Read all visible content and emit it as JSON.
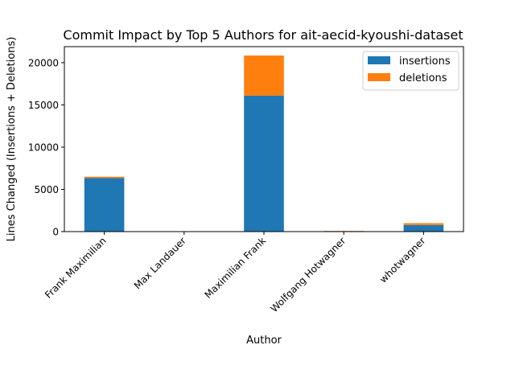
{
  "chart_data": {
    "type": "bar",
    "stacked": true,
    "title": "Commit Impact by Top 5 Authors for ait-aecid-kyoushi-dataset",
    "xlabel": "Author",
    "ylabel": "Lines Changed (Insertions + Deletions)",
    "categories": [
      "Frank Maximilian",
      "Max Landauer",
      "Maximilian Frank",
      "Wolfgang Hotwagner",
      "whotwagner"
    ],
    "series": [
      {
        "name": "insertions",
        "color": "#1f77b4",
        "values": [
          6350,
          20,
          16100,
          60,
          780
        ]
      },
      {
        "name": "deletions",
        "color": "#ff7f0e",
        "values": [
          150,
          5,
          4750,
          20,
          220
        ]
      }
    ],
    "ylim": [
      0,
      21900
    ],
    "yticks": [
      0,
      5000,
      10000,
      15000,
      20000
    ],
    "grid": false,
    "legend_position": "top-right"
  }
}
